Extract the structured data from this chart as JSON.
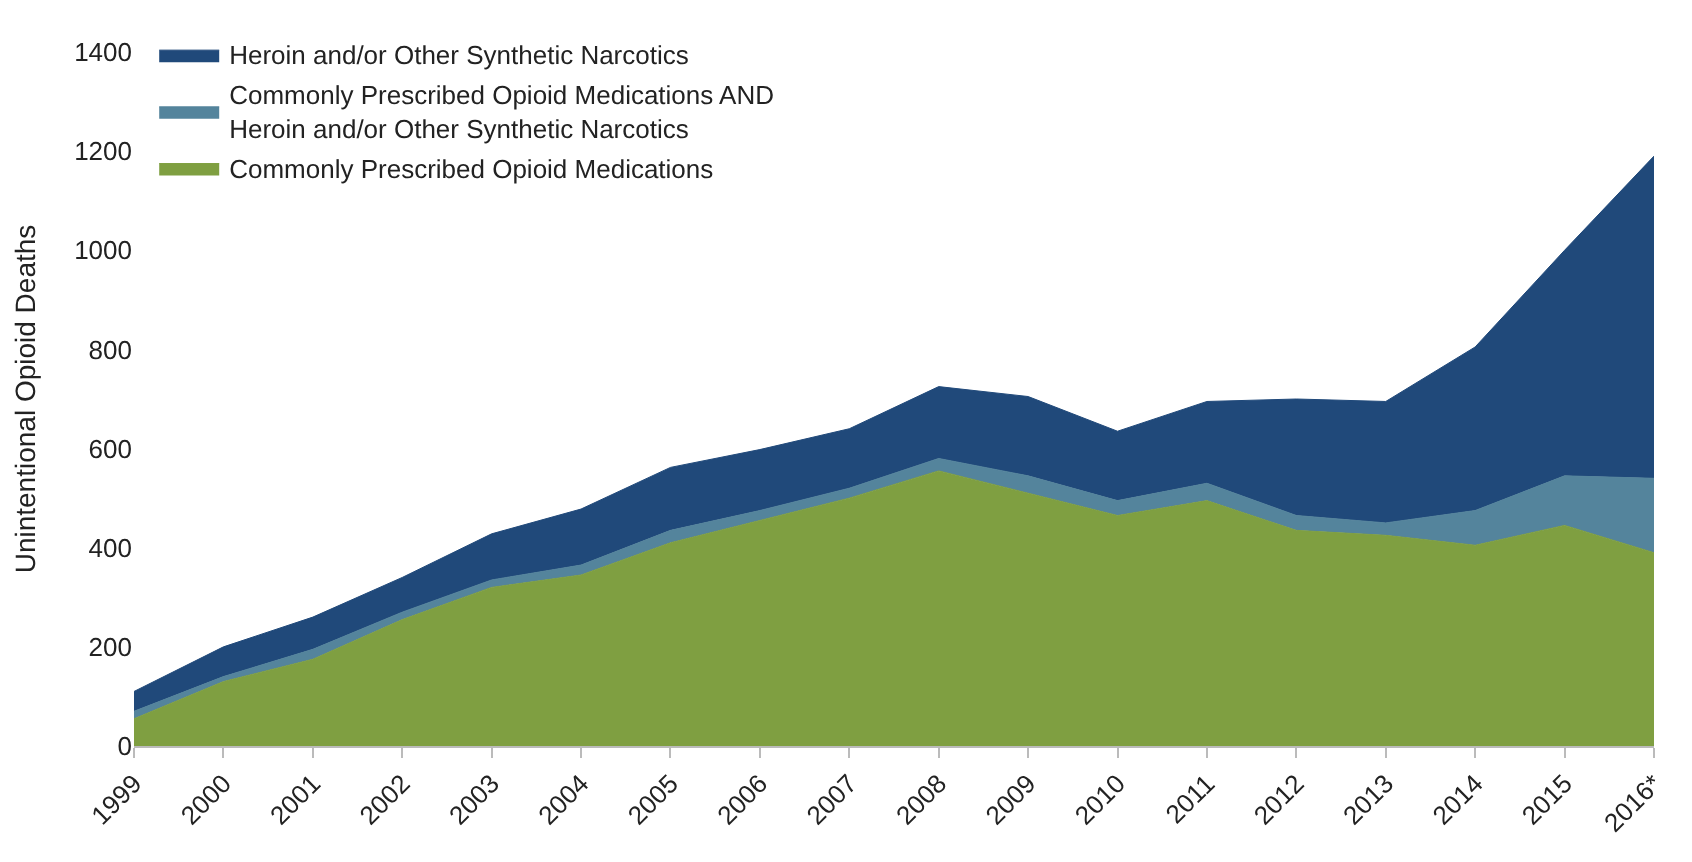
{
  "chart_data": {
    "type": "area",
    "stacked": true,
    "ylabel": "Unintentional Opioid Deaths",
    "categories": [
      "1999",
      "2000",
      "2001",
      "2002",
      "2003",
      "2004",
      "2005",
      "2006",
      "2007",
      "2008",
      "2009",
      "2010",
      "2011",
      "2012",
      "2013",
      "2014",
      "2015",
      "2016*"
    ],
    "series": [
      {
        "name": "Commonly Prescribed Opioid Medications",
        "color": "#7f9f41",
        "values": [
          55,
          130,
          175,
          255,
          320,
          345,
          410,
          455,
          500,
          555,
          510,
          465,
          495,
          435,
          425,
          405,
          445,
          390
        ]
      },
      {
        "name": "Commonly Prescribed Opioid Medications AND\nHeroin and/or Other Synthetic Narcotics",
        "color": "#54849c",
        "values": [
          15,
          10,
          20,
          15,
          15,
          20,
          25,
          20,
          20,
          25,
          35,
          30,
          35,
          30,
          25,
          70,
          100,
          150
        ]
      },
      {
        "name": "Heroin and/or Other Synthetic Narcotics",
        "color": "#20497a",
        "values": [
          40,
          60,
          65,
          70,
          93,
          113,
          127,
          123,
          120,
          145,
          160,
          140,
          165,
          235,
          245,
          330,
          455,
          650
        ]
      }
    ],
    "ylim": [
      0,
      1400
    ],
    "yticks": [
      0,
      200,
      400,
      600,
      800,
      1000,
      1200,
      1400
    ],
    "legend": "top left"
  }
}
